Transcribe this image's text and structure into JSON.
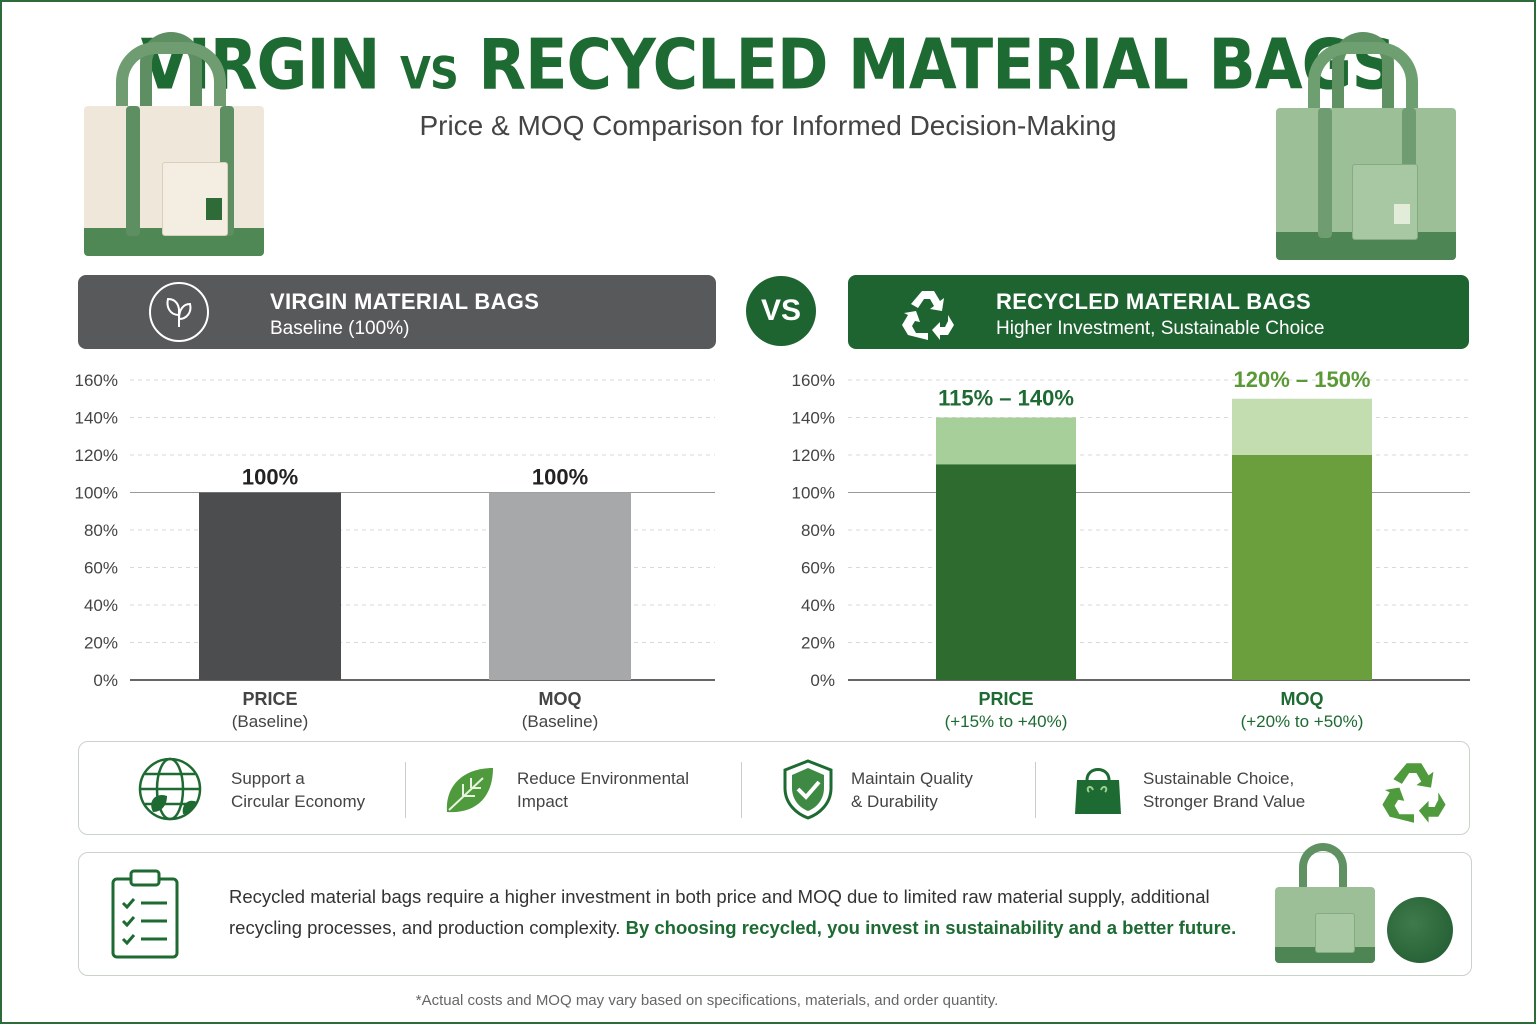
{
  "header": {
    "title_part1": "VIRGIN",
    "title_vs": "VS",
    "title_part2": "RECYCLED MATERIAL BAGS",
    "subtitle": "Price & MOQ Comparison for Informed Decision-Making"
  },
  "panels": {
    "virgin": {
      "title": "VIRGIN MATERIAL BAGS",
      "subtitle": "Baseline (100%)",
      "icon": "leaf-circle-icon"
    },
    "vs_badge": "VS",
    "recycled": {
      "title": "RECYCLED MATERIAL BAGS",
      "subtitle": "Higher Investment, Sustainable Choice",
      "icon": "recycle-icon"
    }
  },
  "colors": {
    "brand_green": "#1d6a32",
    "virgin_price": "#4b4d4f",
    "virgin_moq": "#a6a8aa",
    "recycled_price_base": "#2d6b2f",
    "recycled_price_range": "#a7cf9a",
    "recycled_moq_base": "#6b9f3e",
    "recycled_moq_range": "#c3dcb0"
  },
  "chart_data": [
    {
      "type": "bar",
      "categories": [
        "PRICE",
        "MOQ"
      ],
      "category_sublabels": [
        "(Baseline)",
        "(Baseline)"
      ],
      "values": [
        100,
        100
      ],
      "data_labels": [
        "100%",
        "100%"
      ],
      "yticks": [
        "0%",
        "20%",
        "40%",
        "60%",
        "80%",
        "100%",
        "120%",
        "140%",
        "160%"
      ],
      "ylim": [
        0,
        160
      ],
      "grid": true,
      "reference_line": 100
    },
    {
      "type": "bar",
      "categories": [
        "PRICE",
        "MOQ"
      ],
      "category_sublabels": [
        "(+15% to +40%)",
        "(+20% to +50%)"
      ],
      "range_low": [
        115,
        120
      ],
      "range_high": [
        140,
        150
      ],
      "data_labels": [
        "115% – 140%",
        "120% – 150%"
      ],
      "yticks": [
        "0%",
        "20%",
        "40%",
        "60%",
        "80%",
        "100%",
        "120%",
        "140%",
        "160%"
      ],
      "ylim": [
        0,
        160
      ],
      "grid": true,
      "reference_line": 100
    }
  ],
  "benefits": [
    {
      "line1": "Support a",
      "line2": "Circular Economy",
      "icon": "globe-leaf-icon"
    },
    {
      "line1": "Reduce Environmental",
      "line2": "Impact",
      "icon": "leaf-icon"
    },
    {
      "line1": "Maintain Quality",
      "line2": "& Durability",
      "icon": "shield-check-icon"
    },
    {
      "line1": "Sustainable Choice,",
      "line2": "Stronger Brand Value",
      "icon": "shopping-bag-icon"
    }
  ],
  "note": {
    "text": "Recycled material bags require a higher investment in both price and MOQ due to limited raw material supply, additional recycling processes, and production complexity.",
    "emphasis": "By choosing recycled, you invest in sustainability and a better future.",
    "icon": "clipboard-checklist-icon"
  },
  "footnote": "*Actual costs and MOQ may vary based on specifications, materials, and order quantity."
}
